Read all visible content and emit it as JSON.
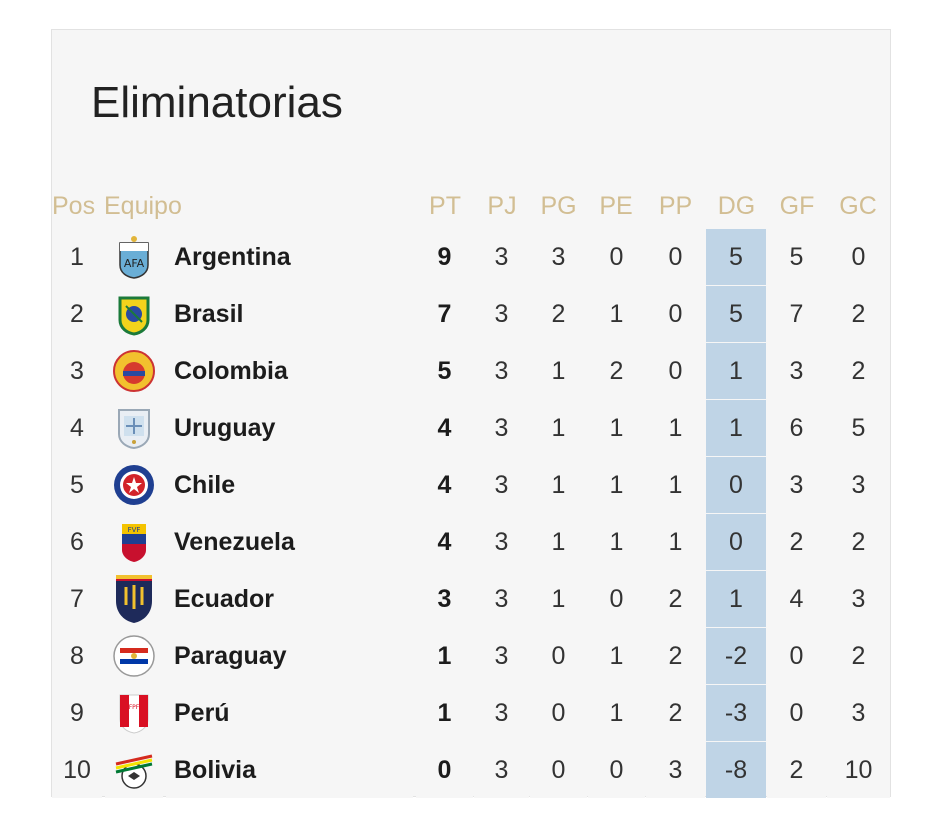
{
  "title": "Eliminatorias",
  "headers": {
    "pos": "Pos",
    "team": "Equipo",
    "pt": "PT",
    "pj": "PJ",
    "pg": "PG",
    "pe": "PE",
    "pp": "PP",
    "dg": "DG",
    "gf": "GF",
    "gc": "GC"
  },
  "rows": [
    {
      "pos": "1",
      "team": "Argentina",
      "pt": "9",
      "pj": "3",
      "pg": "3",
      "pe": "0",
      "pp": "0",
      "dg": "5",
      "gf": "5",
      "gc": "0",
      "crest": "argentina-crest-icon"
    },
    {
      "pos": "2",
      "team": "Brasil",
      "pt": "7",
      "pj": "3",
      "pg": "2",
      "pe": "1",
      "pp": "0",
      "dg": "5",
      "gf": "7",
      "gc": "2",
      "crest": "brasil-crest-icon"
    },
    {
      "pos": "3",
      "team": "Colombia",
      "pt": "5",
      "pj": "3",
      "pg": "1",
      "pe": "2",
      "pp": "0",
      "dg": "1",
      "gf": "3",
      "gc": "2",
      "crest": "colombia-crest-icon"
    },
    {
      "pos": "4",
      "team": "Uruguay",
      "pt": "4",
      "pj": "3",
      "pg": "1",
      "pe": "1",
      "pp": "1",
      "dg": "1",
      "gf": "6",
      "gc": "5",
      "crest": "uruguay-crest-icon"
    },
    {
      "pos": "5",
      "team": "Chile",
      "pt": "4",
      "pj": "3",
      "pg": "1",
      "pe": "1",
      "pp": "1",
      "dg": "0",
      "gf": "3",
      "gc": "3",
      "crest": "chile-crest-icon"
    },
    {
      "pos": "6",
      "team": "Venezuela",
      "pt": "4",
      "pj": "3",
      "pg": "1",
      "pe": "1",
      "pp": "1",
      "dg": "0",
      "gf": "2",
      "gc": "2",
      "crest": "venezuela-crest-icon"
    },
    {
      "pos": "7",
      "team": "Ecuador",
      "pt": "3",
      "pj": "3",
      "pg": "1",
      "pe": "0",
      "pp": "2",
      "dg": "1",
      "gf": "4",
      "gc": "3",
      "crest": "ecuador-crest-icon"
    },
    {
      "pos": "8",
      "team": "Paraguay",
      "pt": "1",
      "pj": "3",
      "pg": "0",
      "pe": "1",
      "pp": "2",
      "dg": "-2",
      "gf": "0",
      "gc": "2",
      "crest": "paraguay-crest-icon"
    },
    {
      "pos": "9",
      "team": "Perú",
      "pt": "1",
      "pj": "3",
      "pg": "0",
      "pe": "1",
      "pp": "2",
      "dg": "-3",
      "gf": "0",
      "gc": "3",
      "crest": "peru-crest-icon"
    },
    {
      "pos": "10",
      "team": "Bolivia",
      "pt": "0",
      "pj": "3",
      "pg": "0",
      "pe": "0",
      "pp": "3",
      "dg": "-8",
      "gf": "2",
      "gc": "10",
      "crest": "bolivia-crest-icon"
    }
  ],
  "colors": {
    "header_text": "#d2be93",
    "dg_highlight": "#bfd4e6",
    "row_background": "#f6f6f6",
    "grid_line": "#ffffff"
  }
}
